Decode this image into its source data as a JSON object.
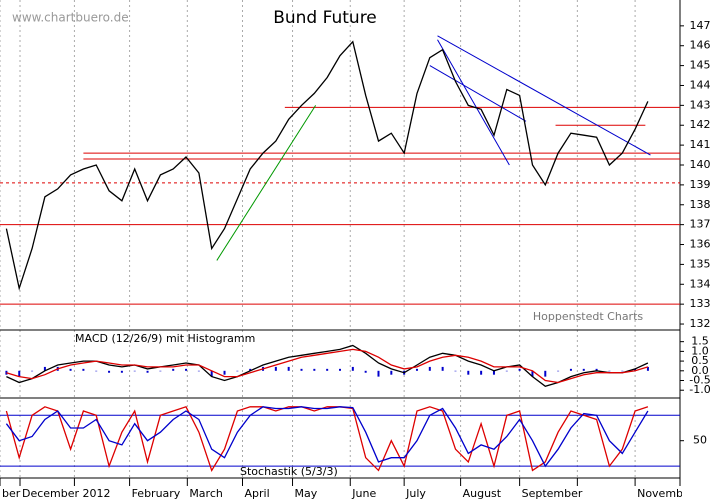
{
  "chart_data": [
    {
      "type": "line",
      "title": "Bund Future",
      "source": "www.chartbuero.de",
      "credit": "Hoppenstedt Charts",
      "x": [
        0,
        1,
        2,
        3,
        4,
        5,
        6,
        7,
        8,
        9,
        10,
        11,
        12,
        13,
        14,
        15,
        16,
        17,
        18,
        19,
        20,
        21,
        22,
        23,
        24,
        25,
        26,
        27,
        28,
        29,
        30,
        31,
        32,
        33,
        34,
        35,
        36,
        37,
        38,
        39,
        40,
        41,
        42,
        43,
        44,
        45,
        46,
        47,
        48,
        49,
        50
      ],
      "series": [
        {
          "color": "#000000",
          "values": [
            136.8,
            133.8,
            135.8,
            138.4,
            138.8,
            139.5,
            139.8,
            140,
            138.7,
            138.2,
            139.8,
            138.2,
            139.5,
            139.8,
            140.4,
            139.6,
            135.8,
            136.8,
            138.3,
            139.8,
            140.6,
            141.2,
            142.3,
            143,
            143.6,
            144.4,
            145.5,
            146.2,
            143.5,
            141.2,
            141.6,
            140.6,
            143.6,
            145.4,
            145.8,
            144.2,
            143,
            142.8,
            141.5,
            143.8,
            143.5,
            140,
            139,
            140.6,
            141.6,
            141.5,
            141.4,
            140,
            140.6,
            141.8,
            143.2
          ]
        }
      ],
      "xlim": [
        -0.5,
        52.5
      ],
      "ylim": [
        131.7,
        148.3
      ],
      "yticks": [
        132,
        133,
        134,
        135,
        136,
        137,
        138,
        139,
        140,
        141,
        142,
        143,
        144,
        145,
        146,
        147
      ],
      "xticks": [
        {
          "value": -0.5,
          "label": "ber"
        },
        {
          "value": 1.06,
          "label": "December 2012"
        },
        {
          "value": 5.3,
          "label": null
        },
        {
          "value": 9.6,
          "label": "February"
        },
        {
          "value": 14.1,
          "label": "March"
        },
        {
          "value": 18.4,
          "label": "April"
        },
        {
          "value": 22.3,
          "label": "May"
        },
        {
          "value": 26.8,
          "label": "June"
        },
        {
          "value": 31,
          "label": "July"
        },
        {
          "value": 35.4,
          "label": "August"
        },
        {
          "value": 40,
          "label": "September"
        },
        {
          "value": 44.5,
          "label": null
        },
        {
          "value": 49,
          "label": "November"
        }
      ],
      "trendlines": [
        {
          "color": "#dd0000",
          "points": [
            [
              21.7,
              142.9
            ],
            [
              52.5,
              142.9
            ]
          ]
        },
        {
          "color": "#dd0000",
          "points": [
            [
              6,
              140.6
            ],
            [
              52.5,
              140.6
            ]
          ]
        },
        {
          "color": "#dd0000",
          "points": [
            [
              6,
              140.3
            ],
            [
              52.5,
              140.3
            ]
          ]
        },
        {
          "color": "#dd0000",
          "dashed": true,
          "points": [
            [
              -0.5,
              139.1
            ],
            [
              52.5,
              139.1
            ]
          ]
        },
        {
          "color": "#dd0000",
          "points": [
            [
              -0.5,
              137
            ],
            [
              52.5,
              137
            ]
          ]
        },
        {
          "color": "#dd0000",
          "points": [
            [
              -0.5,
              133
            ],
            [
              52.5,
              133
            ]
          ]
        },
        {
          "color": "#dd0000",
          "points": [
            [
              42.8,
              142
            ],
            [
              49.8,
              142
            ]
          ]
        },
        {
          "color": "#0000cc",
          "points": [
            [
              33.6,
              146.5
            ],
            [
              50.2,
              140.5
            ]
          ]
        },
        {
          "color": "#0000cc",
          "points": [
            [
              33.6,
              146.3
            ],
            [
              39.2,
              140
            ]
          ]
        },
        {
          "color": "#0000cc",
          "points": [
            [
              33,
              145
            ],
            [
              40.5,
              142.2
            ]
          ]
        },
        {
          "color": "#009900",
          "points": [
            [
              16.4,
              135.2
            ],
            [
              24.1,
              143
            ]
          ]
        }
      ]
    },
    {
      "type": "indicator",
      "title": "MACD (12/26/9) mit Histogramm",
      "ylim": [
        -1.4,
        2.1
      ],
      "yticks": [
        1.5,
        {
          "value": 1.0,
          "label": "1.0"
        },
        0.5,
        {
          "value": 0.0,
          "label": "0.0"
        },
        -0.5,
        {
          "value": -1.0,
          "label": "-1.0"
        }
      ],
      "series": [
        {
          "style": "bar",
          "color": "#0000cc",
          "values": [
            -0.2,
            -0.3,
            0,
            0.2,
            0.2,
            0.1,
            0.1,
            0,
            -0.1,
            -0.1,
            0,
            -0.1,
            0,
            0.1,
            0.1,
            0,
            -0.3,
            -0.2,
            0,
            0.1,
            0.2,
            0.2,
            0.2,
            0.1,
            0.1,
            0.1,
            0.1,
            0.2,
            -0.1,
            -0.3,
            -0.2,
            -0.2,
            0.1,
            0.2,
            0.2,
            0,
            -0.2,
            -0.2,
            -0.2,
            0,
            0.1,
            -0.3,
            -0.3,
            0,
            0.1,
            0.1,
            0.1,
            0,
            0,
            0.1,
            0.2
          ]
        },
        {
          "style": "line",
          "color": "#000000",
          "values": [
            -0.3,
            -0.6,
            -0.4,
            0.0,
            0.3,
            0.4,
            0.5,
            0.5,
            0.3,
            0.2,
            0.3,
            0.1,
            0.2,
            0.3,
            0.4,
            0.3,
            -0.3,
            -0.5,
            -0.3,
            0.0,
            0.3,
            0.5,
            0.7,
            0.8,
            0.9,
            1.0,
            1.1,
            1.3,
            0.9,
            0.4,
            0.1,
            -0.1,
            0.3,
            0.7,
            0.9,
            0.8,
            0.5,
            0.3,
            0.0,
            0.2,
            0.3,
            -0.3,
            -0.8,
            -0.6,
            -0.3,
            -0.1,
            0.0,
            -0.1,
            -0.1,
            0.1,
            0.4
          ]
        },
        {
          "style": "line",
          "color": "#dd0000",
          "values": [
            -0.1,
            -0.3,
            -0.4,
            -0.2,
            0.1,
            0.3,
            0.4,
            0.5,
            0.4,
            0.3,
            0.3,
            0.2,
            0.2,
            0.2,
            0.3,
            0.3,
            0.0,
            -0.3,
            -0.3,
            -0.1,
            0.1,
            0.3,
            0.5,
            0.7,
            0.8,
            0.9,
            1.0,
            1.1,
            1.0,
            0.7,
            0.3,
            0.1,
            0.2,
            0.5,
            0.7,
            0.8,
            0.7,
            0.5,
            0.2,
            0.2,
            0.2,
            0.0,
            -0.5,
            -0.6,
            -0.4,
            -0.2,
            -0.1,
            -0.1,
            -0.1,
            0.0,
            0.2
          ]
        }
      ]
    },
    {
      "type": "indicator",
      "title": "Stochastik (5/3/3)",
      "ylim": [
        6,
        98
      ],
      "yticks": [
        50
      ],
      "levels": [
        20,
        80
      ],
      "level_color": "#0000cc",
      "series": [
        {
          "style": "line",
          "color": "#dd0000",
          "values": [
            85,
            30,
            80,
            90,
            85,
            40,
            85,
            80,
            20,
            60,
            85,
            25,
            80,
            85,
            90,
            60,
            15,
            40,
            85,
            90,
            90,
            85,
            90,
            90,
            85,
            90,
            90,
            88,
            30,
            15,
            50,
            20,
            85,
            90,
            85,
            40,
            25,
            70,
            20,
            80,
            85,
            15,
            25,
            60,
            85,
            80,
            75,
            20,
            40,
            85,
            90
          ]
        },
        {
          "style": "line",
          "color": "#0000cc",
          "values": [
            70,
            50,
            55,
            75,
            85,
            65,
            65,
            75,
            50,
            45,
            70,
            50,
            60,
            75,
            85,
            75,
            40,
            30,
            60,
            80,
            90,
            88,
            88,
            90,
            88,
            88,
            90,
            89,
            60,
            25,
            30,
            30,
            50,
            80,
            88,
            65,
            35,
            45,
            40,
            55,
            75,
            50,
            20,
            40,
            65,
            82,
            80,
            50,
            35,
            60,
            85
          ]
        }
      ]
    }
  ]
}
